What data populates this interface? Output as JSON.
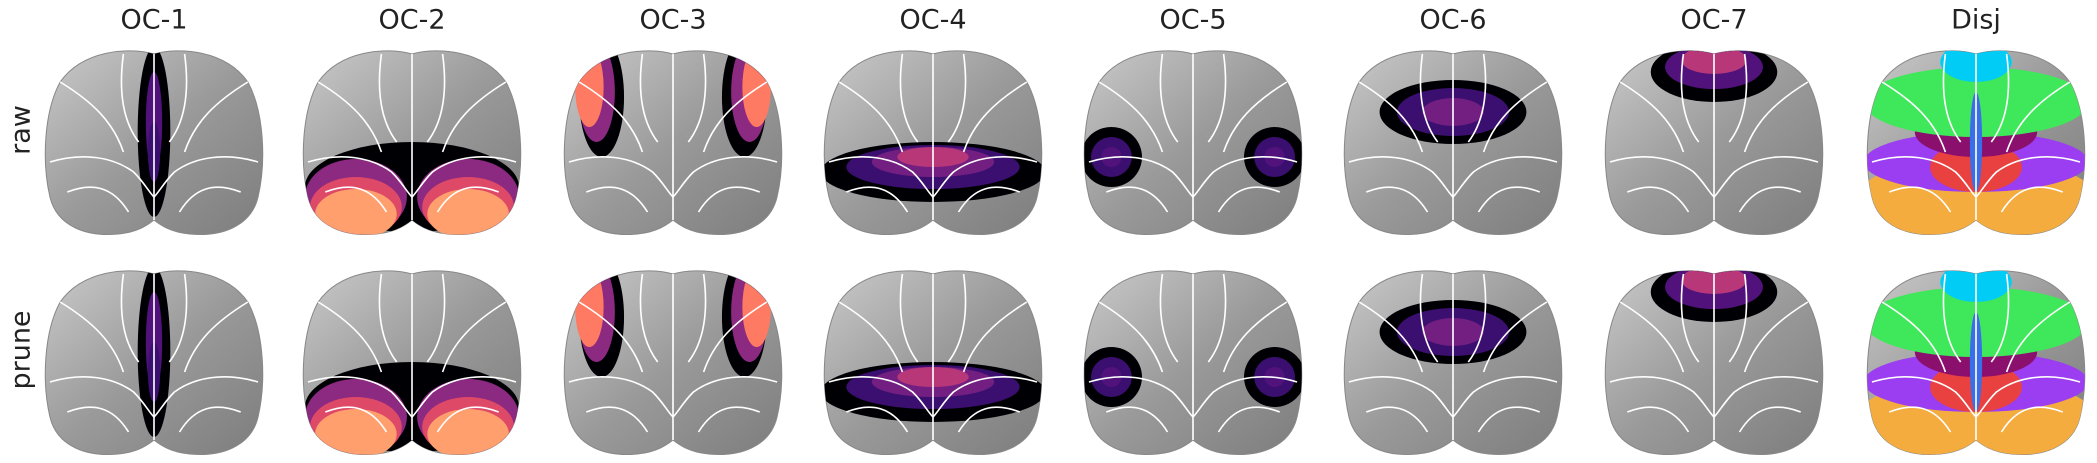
{
  "columns": [
    "OC-1",
    "OC-2",
    "OC-3",
    "OC-4",
    "OC-5",
    "OC-6",
    "OC-7",
    "Disj"
  ],
  "rows": [
    "raw",
    "prune"
  ]
}
